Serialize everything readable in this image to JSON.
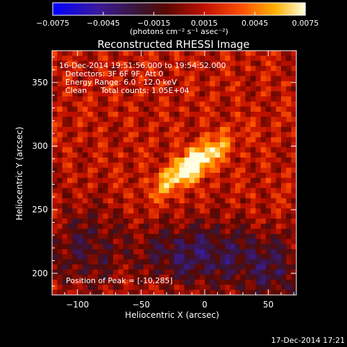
{
  "chart_data": {
    "type": "heatmap",
    "title": "Reconstructed RHESSI Image",
    "xlabel": "Heliocentric X (arcsec)",
    "ylabel": "Heliocentric Y (arcsec)",
    "xlim": [
      -120,
      72
    ],
    "ylim": [
      183,
      375
    ],
    "xticks": [
      -100,
      -50,
      0,
      50
    ],
    "xtick_labels": [
      "−100",
      "−50",
      "0",
      "50"
    ],
    "yticks": [
      200,
      250,
      300,
      350
    ],
    "ytick_labels": [
      "200",
      "250",
      "300",
      "350"
    ],
    "colorbar": {
      "range": [
        -0.0075,
        0.0075
      ],
      "ticks": [
        -0.0075,
        -0.0045,
        -0.0015,
        0.0015,
        0.0045,
        0.0075
      ],
      "tick_labels": [
        "−0.0075",
        "−0.0045",
        "−0.0015",
        "0.0015",
        "0.0045",
        "0.0075"
      ],
      "unit_label": "(photons cm⁻² s⁻¹ asec⁻²)",
      "colormap": "blue-purple-red-orange-yellow-white"
    },
    "annotations": {
      "time_range": "16-Dec-2014 19:51:56.000 to 19:54:52.000",
      "detectors": "Detectors: 3F 6F 9F, Att 0",
      "energy": "Energy Range: 6.0 - 12.0 keV",
      "clean_label": "Clean",
      "total_counts": "Total counts: 1.05E+04",
      "peak": "Position of Peak = [-10,285]"
    },
    "peak_position": [
      -10,
      285
    ],
    "image_description_values": {
      "background_level": 0.0015,
      "peak_level": 0.0075,
      "negative_region_center": [
        -5,
        215
      ]
    }
  },
  "footer": {
    "timestamp": "17-Dec-2014 17:21"
  },
  "colors": {
    "background": "#000000",
    "text": "#ffffff"
  }
}
